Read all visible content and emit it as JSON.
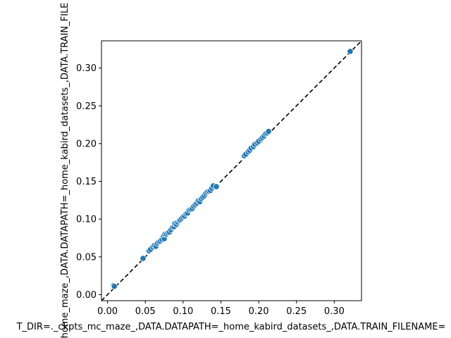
{
  "chart_data": {
    "type": "scatter",
    "title": "",
    "xlabel": "T_DIR=._ckpts_mc_maze_,DATA.DATAPATH=_home_kabird_datasets_,DATA.TRAIN_FILENAME=",
    "ylabel": "home_maze_,DATA.DATAPATH=_home_kabird_datasets_,DATA.TRAIN_FILE",
    "xlim": [
      -0.008,
      0.336
    ],
    "ylim": [
      -0.008,
      0.336
    ],
    "xticks": [
      "0.00",
      "0.05",
      "0.10",
      "0.15",
      "0.20",
      "0.25",
      "0.30"
    ],
    "yticks": [
      "0.00",
      "0.05",
      "0.10",
      "0.15",
      "0.20",
      "0.25",
      "0.30"
    ],
    "reference_line": "y = x",
    "grid": false,
    "point_color": "#1f77b4",
    "points": [
      [
        0.008,
        0.012
      ],
      [
        0.009,
        0.011
      ],
      [
        0.047,
        0.048
      ],
      [
        0.055,
        0.058
      ],
      [
        0.057,
        0.06
      ],
      [
        0.06,
        0.063
      ],
      [
        0.062,
        0.065
      ],
      [
        0.064,
        0.064
      ],
      [
        0.066,
        0.068
      ],
      [
        0.068,
        0.07
      ],
      [
        0.07,
        0.071
      ],
      [
        0.072,
        0.073
      ],
      [
        0.074,
        0.077
      ],
      [
        0.075,
        0.074
      ],
      [
        0.076,
        0.08
      ],
      [
        0.078,
        0.08
      ],
      [
        0.08,
        0.082
      ],
      [
        0.082,
        0.083
      ],
      [
        0.084,
        0.086
      ],
      [
        0.086,
        0.089
      ],
      [
        0.088,
        0.09
      ],
      [
        0.089,
        0.094
      ],
      [
        0.091,
        0.093
      ],
      [
        0.093,
        0.096
      ],
      [
        0.095,
        0.098
      ],
      [
        0.096,
        0.099
      ],
      [
        0.098,
        0.101
      ],
      [
        0.1,
        0.103
      ],
      [
        0.102,
        0.104
      ],
      [
        0.104,
        0.107
      ],
      [
        0.106,
        0.108
      ],
      [
        0.108,
        0.112
      ],
      [
        0.11,
        0.113
      ],
      [
        0.112,
        0.114
      ],
      [
        0.114,
        0.117
      ],
      [
        0.116,
        0.119
      ],
      [
        0.118,
        0.121
      ],
      [
        0.12,
        0.124
      ],
      [
        0.122,
        0.123
      ],
      [
        0.124,
        0.127
      ],
      [
        0.126,
        0.129
      ],
      [
        0.128,
        0.131
      ],
      [
        0.13,
        0.134
      ],
      [
        0.132,
        0.136
      ],
      [
        0.134,
        0.137
      ],
      [
        0.136,
        0.138
      ],
      [
        0.138,
        0.141
      ],
      [
        0.14,
        0.144
      ],
      [
        0.144,
        0.143
      ],
      [
        0.181,
        0.184
      ],
      [
        0.183,
        0.186
      ],
      [
        0.186,
        0.189
      ],
      [
        0.188,
        0.191
      ],
      [
        0.19,
        0.194
      ],
      [
        0.193,
        0.196
      ],
      [
        0.195,
        0.199
      ],
      [
        0.198,
        0.201
      ],
      [
        0.2,
        0.203
      ],
      [
        0.203,
        0.206
      ],
      [
        0.205,
        0.208
      ],
      [
        0.207,
        0.21
      ],
      [
        0.209,
        0.213
      ],
      [
        0.211,
        0.214
      ],
      [
        0.213,
        0.216
      ],
      [
        0.321,
        0.322
      ]
    ]
  }
}
